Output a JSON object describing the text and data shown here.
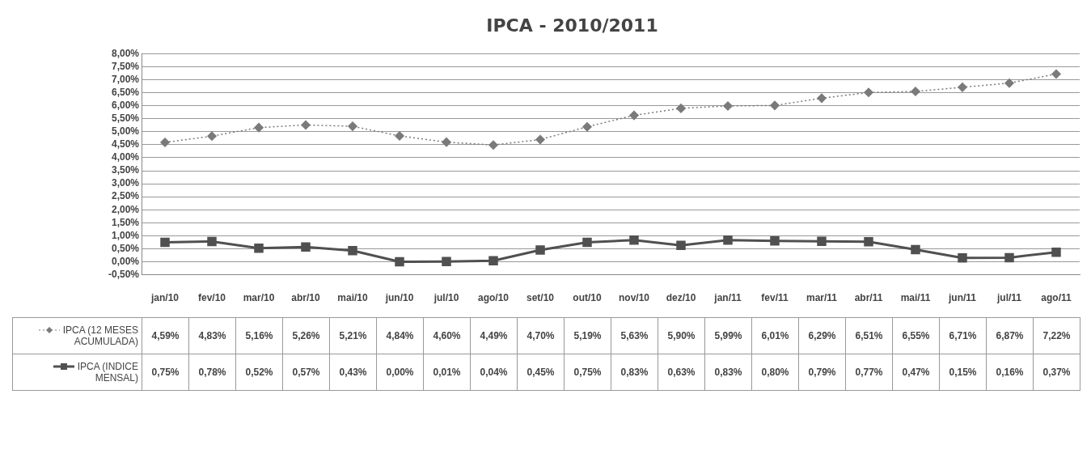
{
  "chart_data": {
    "type": "line",
    "title": "IPCA - 2010/2011",
    "categories": [
      "jan/10",
      "fev/10",
      "mar/10",
      "abr/10",
      "mai/10",
      "jun/10",
      "jul/10",
      "ago/10",
      "set/10",
      "out/10",
      "nov/10",
      "dez/10",
      "jan/11",
      "fev/11",
      "mar/11",
      "abr/11",
      "mai/11",
      "jun/11",
      "jul/11",
      "ago/11"
    ],
    "series": [
      {
        "name": "IPCA (12 MESES ACUMULADA)",
        "color": "#7a7a7a",
        "marker": "diamond",
        "line_style": "dotted",
        "values": [
          4.59,
          4.83,
          5.16,
          5.26,
          5.21,
          4.84,
          4.6,
          4.49,
          4.7,
          5.19,
          5.63,
          5.9,
          5.99,
          6.01,
          6.29,
          6.51,
          6.55,
          6.71,
          6.87,
          7.22
        ],
        "value_labels": [
          "4,59%",
          "4,83%",
          "5,16%",
          "5,26%",
          "5,21%",
          "4,84%",
          "4,60%",
          "4,49%",
          "4,70%",
          "5,19%",
          "5,63%",
          "5,90%",
          "5,99%",
          "6,01%",
          "6,29%",
          "6,51%",
          "6,55%",
          "6,71%",
          "6,87%",
          "7,22%"
        ]
      },
      {
        "name": "IPCA (INDICE MENSAL)",
        "color": "#505050",
        "marker": "square",
        "line_style": "solid",
        "values": [
          0.75,
          0.78,
          0.52,
          0.57,
          0.43,
          0.0,
          0.01,
          0.04,
          0.45,
          0.75,
          0.83,
          0.63,
          0.83,
          0.8,
          0.79,
          0.77,
          0.47,
          0.15,
          0.16,
          0.37
        ],
        "value_labels": [
          "0,75%",
          "0,78%",
          "0,52%",
          "0,57%",
          "0,43%",
          "0,00%",
          "0,01%",
          "0,04%",
          "0,45%",
          "0,75%",
          "0,83%",
          "0,63%",
          "0,83%",
          "0,80%",
          "0,79%",
          "0,77%",
          "0,47%",
          "0,15%",
          "0,16%",
          "0,37%"
        ]
      }
    ],
    "ylim": [
      -0.5,
      8
    ],
    "yticks": [
      {
        "value": -0.5,
        "label": "-0,50%"
      },
      {
        "value": 0,
        "label": "0,00%"
      },
      {
        "value": 0.5,
        "label": "0,50%"
      },
      {
        "value": 1,
        "label": "1,00%"
      },
      {
        "value": 1.5,
        "label": "1,50%"
      },
      {
        "value": 2,
        "label": "2,00%"
      },
      {
        "value": 2.5,
        "label": "2,50%"
      },
      {
        "value": 3,
        "label": "3,00%"
      },
      {
        "value": 3.5,
        "label": "3,50%"
      },
      {
        "value": 4,
        "label": "4,00%"
      },
      {
        "value": 4.5,
        "label": "4,50%"
      },
      {
        "value": 5,
        "label": "5,00%"
      },
      {
        "value": 5.5,
        "label": "5,50%"
      },
      {
        "value": 6,
        "label": "6,00%"
      },
      {
        "value": 6.5,
        "label": "6,50%"
      },
      {
        "value": 7,
        "label": "7,00%"
      },
      {
        "value": 7.5,
        "label": "7,50%"
      },
      {
        "value": 8,
        "label": "8,00%"
      }
    ],
    "grid": "y",
    "legend": "bottom"
  }
}
